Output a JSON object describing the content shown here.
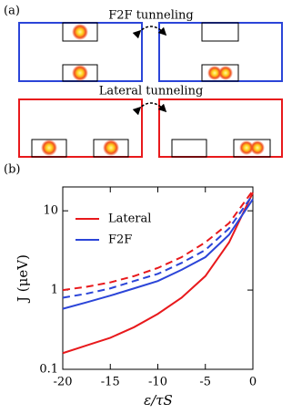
{
  "diagram": {
    "panel_a": "(a)",
    "top_label": "F2F tunneling",
    "bottom_label": "Lateral tunneling"
  },
  "chart_data": {
    "type": "line",
    "panel_label": "(b)",
    "xlabel": "ε/τS",
    "ylabel": "J (μeV)",
    "x": [
      -20,
      -17.5,
      -15,
      -12.5,
      -10,
      -7.5,
      -5,
      -2.5,
      0
    ],
    "series": [
      {
        "name": "Lateral",
        "color": "#e8191c",
        "dash": false,
        "values": [
          0.16,
          0.2,
          0.25,
          0.34,
          0.5,
          0.8,
          1.5,
          4,
          17
        ]
      },
      {
        "name": "F2F",
        "color": "#2b45d8",
        "dash": false,
        "values": [
          0.58,
          0.7,
          0.85,
          1.05,
          1.3,
          1.8,
          2.6,
          5,
          14
        ]
      },
      {
        "color": "#e8191c",
        "dash": true,
        "values": [
          1.0,
          1.1,
          1.25,
          1.5,
          1.9,
          2.6,
          4.0,
          7,
          18
        ]
      },
      {
        "color": "#2b45d8",
        "dash": true,
        "values": [
          0.8,
          0.9,
          1.05,
          1.3,
          1.6,
          2.2,
          3.2,
          6,
          16
        ]
      }
    ],
    "xlim": [
      -20,
      0
    ],
    "xticks": [
      -20,
      -15,
      -10,
      -5,
      0
    ],
    "ylim": [
      0.1,
      20
    ],
    "yticks": [
      0.1,
      1,
      10
    ],
    "log_y": true,
    "legend": "upper left"
  }
}
